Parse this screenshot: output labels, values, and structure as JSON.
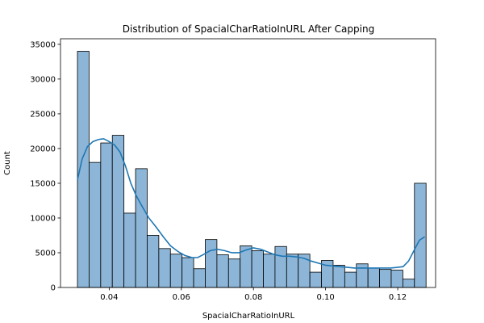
{
  "chart_data": {
    "type": "histogram",
    "title": "Distribution of SpacialCharRatioInURL After Capping",
    "xlabel": "SpacialCharRatioInURL",
    "ylabel": "Count",
    "xlim": [
      0.0265,
      0.1305
    ],
    "ylim": [
      0,
      35800
    ],
    "x_ticks": [
      0.04,
      0.06,
      0.08,
      0.1,
      0.12
    ],
    "x_tick_labels": [
      "0.04",
      "0.06",
      "0.08",
      "0.10",
      "0.12"
    ],
    "y_ticks": [
      0,
      5000,
      10000,
      15000,
      20000,
      25000,
      30000,
      35000
    ],
    "y_tick_labels": [
      "0",
      "5000",
      "10000",
      "15000",
      "20000",
      "25000",
      "30000",
      "35000"
    ],
    "bins": {
      "start": 0.0312,
      "width": 0.003222,
      "counts": [
        34000,
        18000,
        20800,
        21900,
        10700,
        17100,
        7500,
        5600,
        4800,
        4300,
        2700,
        6900,
        4700,
        4100,
        6000,
        5300,
        4800,
        5900,
        4800,
        4800,
        2200,
        3900,
        3200,
        2200,
        3400,
        2800,
        2600,
        2500,
        1200,
        15000
      ]
    },
    "kde": {
      "name": "KDE",
      "x": [
        0.0312,
        0.0325,
        0.034,
        0.0355,
        0.037,
        0.0385,
        0.04,
        0.0415,
        0.043,
        0.0445,
        0.046,
        0.0475,
        0.049,
        0.051,
        0.053,
        0.055,
        0.057,
        0.059,
        0.061,
        0.063,
        0.0645,
        0.066,
        0.068,
        0.07,
        0.072,
        0.074,
        0.076,
        0.078,
        0.08,
        0.082,
        0.084,
        0.086,
        0.088,
        0.09,
        0.092,
        0.094,
        0.096,
        0.098,
        0.1,
        0.102,
        0.104,
        0.106,
        0.108,
        0.11,
        0.112,
        0.114,
        0.116,
        0.118,
        0.12,
        0.1215,
        0.123,
        0.1245,
        0.126,
        0.1275
      ],
      "y": [
        15500,
        18500,
        20300,
        21000,
        21300,
        21400,
        21000,
        20500,
        19500,
        17500,
        15000,
        13200,
        11800,
        10000,
        8700,
        7300,
        6000,
        5200,
        4600,
        4300,
        4300,
        4700,
        5300,
        5500,
        5300,
        5000,
        5000,
        5400,
        5700,
        5500,
        5100,
        4700,
        4500,
        4500,
        4400,
        4200,
        3800,
        3500,
        3200,
        3100,
        3000,
        2900,
        2800,
        2800,
        2800,
        2800,
        2800,
        2800,
        2900,
        3000,
        3800,
        5300,
        6800,
        7300
      ]
    },
    "bar_color": "#8cb5d7",
    "bar_edge_color": "#000000",
    "line_color": "#1f77b4",
    "grid": false,
    "legend": "none"
  }
}
